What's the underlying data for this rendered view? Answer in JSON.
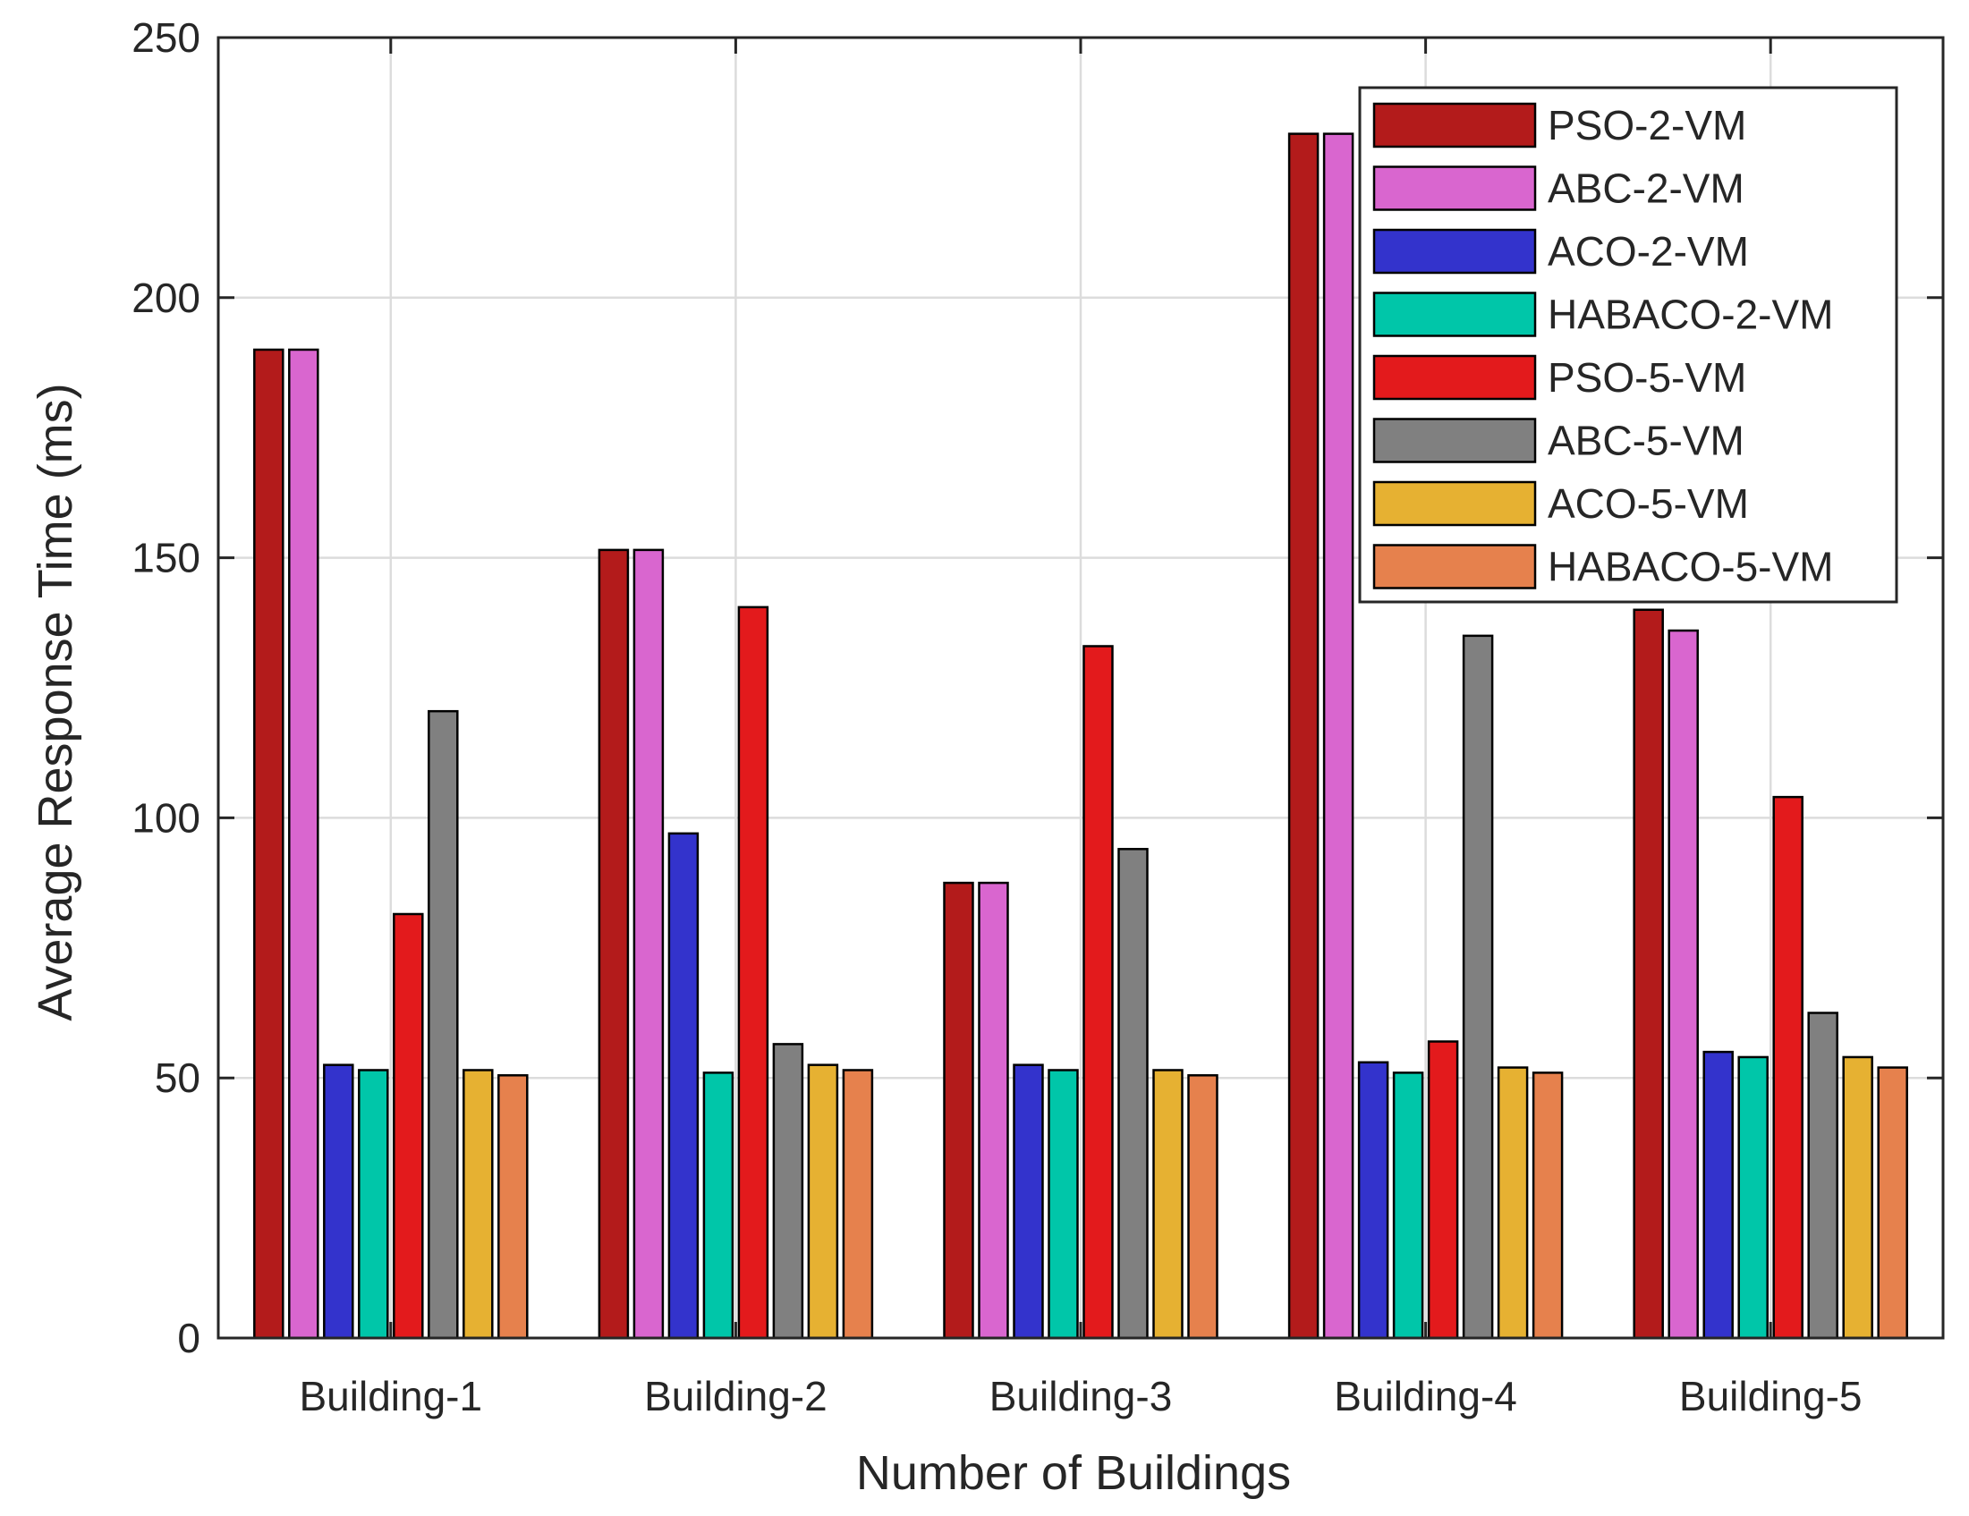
{
  "chart_data": {
    "type": "bar",
    "title": "",
    "xlabel": "Number of Buildings",
    "ylabel": "Average Response Time (ms)",
    "ylim": [
      0,
      250
    ],
    "yticks": [
      0,
      50,
      100,
      150,
      200,
      250
    ],
    "grid": true,
    "legend_position": "top-right",
    "categories": [
      "Building-1",
      "Building-2",
      "Building-3",
      "Building-4",
      "Building-5"
    ],
    "series": [
      {
        "name": "PSO-2-VM",
        "color": "#b31b1b",
        "values": [
          190,
          151.5,
          87.5,
          231.5,
          140
        ]
      },
      {
        "name": "ABC-2-VM",
        "color": "#d966cf",
        "values": [
          190,
          151.5,
          87.5,
          231.5,
          136
        ]
      },
      {
        "name": "ACO-2-VM",
        "color": "#3333cc",
        "values": [
          52.5,
          97,
          52.5,
          53,
          55
        ]
      },
      {
        "name": "HABACO-2-VM",
        "color": "#00c6a9",
        "values": [
          51.5,
          51,
          51.5,
          51,
          54
        ]
      },
      {
        "name": "PSO-5-VM",
        "color": "#e31a1c",
        "values": [
          81.5,
          140.5,
          133,
          57,
          104
        ]
      },
      {
        "name": "ABC-5-VM",
        "color": "#808080",
        "values": [
          120.5,
          56.5,
          94,
          135,
          62.5
        ]
      },
      {
        "name": "ACO-5-VM",
        "color": "#e6b132",
        "values": [
          51.5,
          52.5,
          51.5,
          52,
          54
        ]
      },
      {
        "name": "HABACO-5-VM",
        "color": "#e6814d",
        "values": [
          50.5,
          51.5,
          50.5,
          51,
          52
        ]
      }
    ]
  }
}
